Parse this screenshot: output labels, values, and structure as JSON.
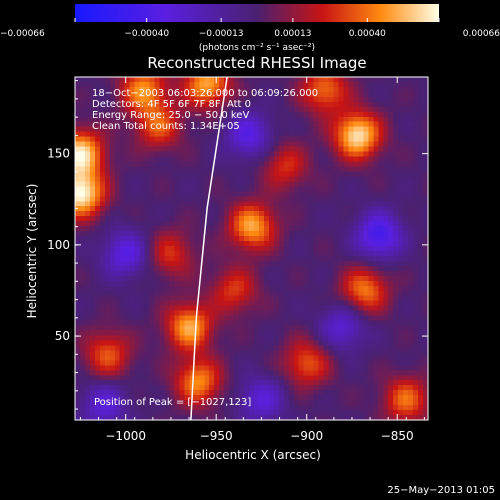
{
  "chart_data": {
    "type": "heatmap",
    "title": "Reconstructed RHESSI Image",
    "xlabel": "Heliocentric X (arcsec)",
    "ylabel": "Heliocentric Y (arcsec)",
    "xlim": [
      -1028,
      -833
    ],
    "ylim": [
      4,
      192
    ],
    "x_ticks": [
      -1000,
      -950,
      -900,
      -850
    ],
    "x_tick_labels": [
      "−1000",
      "−950",
      "−900",
      "−850"
    ],
    "y_ticks": [
      50,
      100,
      150
    ],
    "y_tick_labels": [
      "50",
      "100",
      "150"
    ],
    "colorbar": {
      "range": [
        -0.00066,
        0.00066
      ],
      "ticks": [
        -0.00066,
        -0.0004,
        -0.00013,
        0.00013,
        0.0004,
        0.00066
      ],
      "tick_labels": [
        "−0.00066",
        "−0.00040",
        "−0.00013",
        "0.00013",
        "0.00040",
        "0.00066"
      ],
      "units_label": "(photons cm⁻² s⁻¹ asec⁻²)"
    },
    "info_lines": [
      "18−Oct−2003 06:03:26.000 to 06:09:26.000",
      "Detectors: 4F 5F 6F 7F 8F, Att 0",
      "Energy Range: 25.0 − 50.0 keV",
      "Clean    Total counts: 1.34E+05"
    ],
    "peak_label": "Position of Peak = [−1027,123]",
    "peak": {
      "x": -1027,
      "y": 123
    },
    "limb_x_at_y": [
      {
        "y": 4,
        "x": -964
      },
      {
        "y": 60,
        "x": -961
      },
      {
        "y": 120,
        "x": -955
      },
      {
        "y": 192,
        "x": -944
      }
    ],
    "sources": [
      {
        "x": -1025,
        "y": 128,
        "v": 0.00066
      },
      {
        "x": -1025,
        "y": 150,
        "v": 0.0006
      },
      {
        "x": -990,
        "y": 185,
        "v": 0.00045
      },
      {
        "x": -955,
        "y": 188,
        "v": 0.0005
      },
      {
        "x": -872,
        "y": 160,
        "v": 0.00062
      },
      {
        "x": -890,
        "y": 185,
        "v": 0.0004
      },
      {
        "x": -982,
        "y": 165,
        "v": 0.00035
      },
      {
        "x": -930,
        "y": 110,
        "v": 0.0005
      },
      {
        "x": -912,
        "y": 143,
        "v": 0.00028
      },
      {
        "x": -965,
        "y": 55,
        "v": 0.0005
      },
      {
        "x": -960,
        "y": 25,
        "v": 0.00045
      },
      {
        "x": -1010,
        "y": 40,
        "v": 0.00035
      },
      {
        "x": -868,
        "y": 75,
        "v": 0.00042
      },
      {
        "x": -845,
        "y": 15,
        "v": 0.00038
      },
      {
        "x": -900,
        "y": 35,
        "v": 0.00035
      },
      {
        "x": -940,
        "y": 75,
        "v": 0.0003
      },
      {
        "x": -975,
        "y": 95,
        "v": 0.00028
      },
      {
        "x": -1000,
        "y": 95,
        "v": -0.00035
      },
      {
        "x": -860,
        "y": 105,
        "v": -0.00045
      },
      {
        "x": -932,
        "y": 160,
        "v": -0.00035
      },
      {
        "x": -880,
        "y": 55,
        "v": -0.0003
      },
      {
        "x": -1012,
        "y": 12,
        "v": -0.0003
      },
      {
        "x": -925,
        "y": 15,
        "v": -0.0003
      }
    ]
  },
  "footer": {
    "timestamp": "25−May−2013 01:05"
  }
}
